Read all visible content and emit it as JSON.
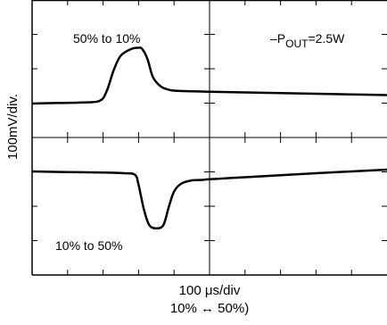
{
  "chart_data": {
    "type": "line",
    "ylabel": "100mV/div.",
    "xlabel": "100 μs/div",
    "caption": "10% ↔ 50%)",
    "annotation": "–POUT=2.5W",
    "annotation_parts": {
      "prefix": "–P",
      "sub": "OUT",
      "suffix": "=2.5W"
    },
    "grid": {
      "x_divisions": 5,
      "y_divisions": 8,
      "minor_ticks": 5
    },
    "series": [
      {
        "name": "50% to 10%",
        "x": [
          0,
          0.5,
          1.0,
          1.4,
          1.9,
          2.1,
          2.3,
          2.5,
          2.8,
          3.0,
          3.1,
          3.25,
          3.4,
          3.6,
          3.8,
          4.0,
          4.5,
          5,
          6,
          7,
          8,
          9,
          10
        ],
        "y": [
          0,
          0.02,
          0.03,
          0.05,
          0.12,
          0.55,
          1.5,
          2.15,
          2.45,
          2.5,
          2.45,
          2.0,
          1.2,
          0.8,
          0.64,
          0.58,
          0.55,
          0.53,
          0.5,
          0.47,
          0.44,
          0.41,
          0.38
        ]
      },
      {
        "name": "10% to 50%",
        "x": [
          0,
          1.0,
          2.0,
          2.6,
          2.9,
          3.0,
          3.15,
          3.3,
          3.5,
          3.7,
          3.85,
          4.0,
          4.2,
          4.5,
          4.8,
          5,
          6,
          7,
          8,
          9,
          10
        ],
        "y": [
          0,
          -0.03,
          -0.05,
          -0.08,
          -0.15,
          -0.6,
          -1.7,
          -2.4,
          -2.55,
          -2.4,
          -1.6,
          -0.9,
          -0.55,
          -0.4,
          -0.38,
          -0.35,
          -0.26,
          -0.17,
          -0.08,
          0.0,
          0.08
        ]
      }
    ]
  }
}
